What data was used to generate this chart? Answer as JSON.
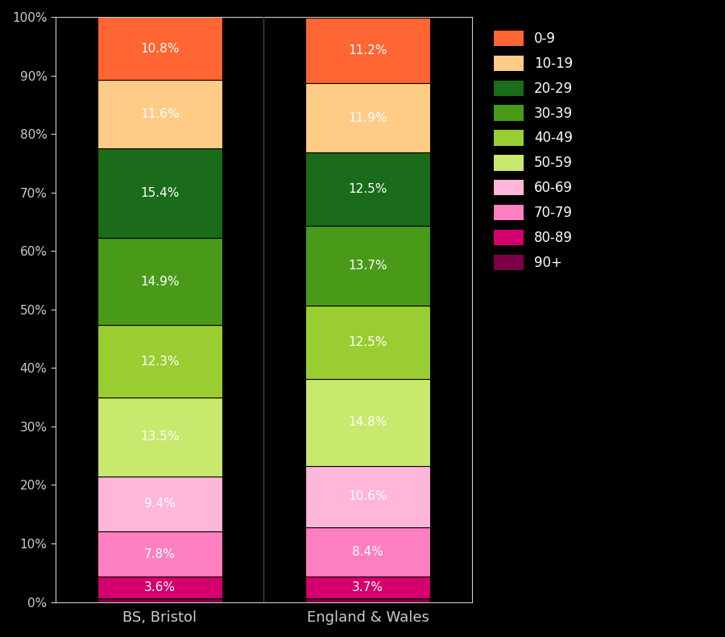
{
  "categories": [
    "BS, Bristol",
    "England & Wales"
  ],
  "age_groups_bottom_to_top": [
    "90+",
    "80-89",
    "70-79",
    "60-69",
    "50-59",
    "40-49",
    "30-39",
    "20-29",
    "10-19",
    "0-9"
  ],
  "colors_bottom_to_top": [
    "#7b0045",
    "#d4006e",
    "#ff80c0",
    "#ffb6d9",
    "#c8e96e",
    "#9acd32",
    "#4a9a1a",
    "#1a6b1a",
    "#ffcc88",
    "#ff6633"
  ],
  "bristol_bottom_to_top": [
    0.7,
    3.6,
    7.8,
    9.4,
    13.5,
    12.3,
    14.9,
    15.4,
    11.6,
    10.8
  ],
  "ew_bottom_to_top": [
    0.6,
    3.7,
    8.4,
    10.6,
    14.8,
    12.5,
    13.7,
    12.5,
    11.9,
    11.2
  ],
  "bristol_labels": [
    "",
    "3.6%",
    "7.8%",
    "9.4%",
    "13.5%",
    "12.3%",
    "14.9%",
    "15.4%",
    "11.6%",
    "10.8%"
  ],
  "ew_labels": [
    "",
    "3.7%",
    "8.4%",
    "10.6%",
    "14.8%",
    "12.5%",
    "13.7%",
    "12.5%",
    "11.9%",
    "11.2%"
  ],
  "legend_labels": [
    "0-9",
    "10-19",
    "20-29",
    "30-39",
    "40-49",
    "50-59",
    "60-69",
    "70-79",
    "80-89",
    "90+"
  ],
  "legend_colors": [
    "#ff6633",
    "#ffcc88",
    "#1a6b1a",
    "#4a9a1a",
    "#9acd32",
    "#c8e96e",
    "#ffb6d9",
    "#ff80c0",
    "#d4006e",
    "#7b0045"
  ],
  "background_color": "#000000",
  "text_color": "#ffffff",
  "axis_label_color": "#cccccc",
  "ytick_values": [
    0,
    10,
    20,
    30,
    40,
    50,
    60,
    70,
    80,
    90,
    100
  ],
  "ytick_labels": [
    "0%",
    "10%",
    "20%",
    "30%",
    "40%",
    "50%",
    "60%",
    "70%",
    "80%",
    "90%",
    "100%"
  ],
  "xlabel_bristol": "BS, Bristol",
  "xlabel_ew": "England & Wales",
  "bar_width": 0.6,
  "x_bristol": 0.5,
  "x_ew": 1.5,
  "xlim": [
    0.0,
    2.0
  ],
  "ylim": [
    0,
    100
  ]
}
